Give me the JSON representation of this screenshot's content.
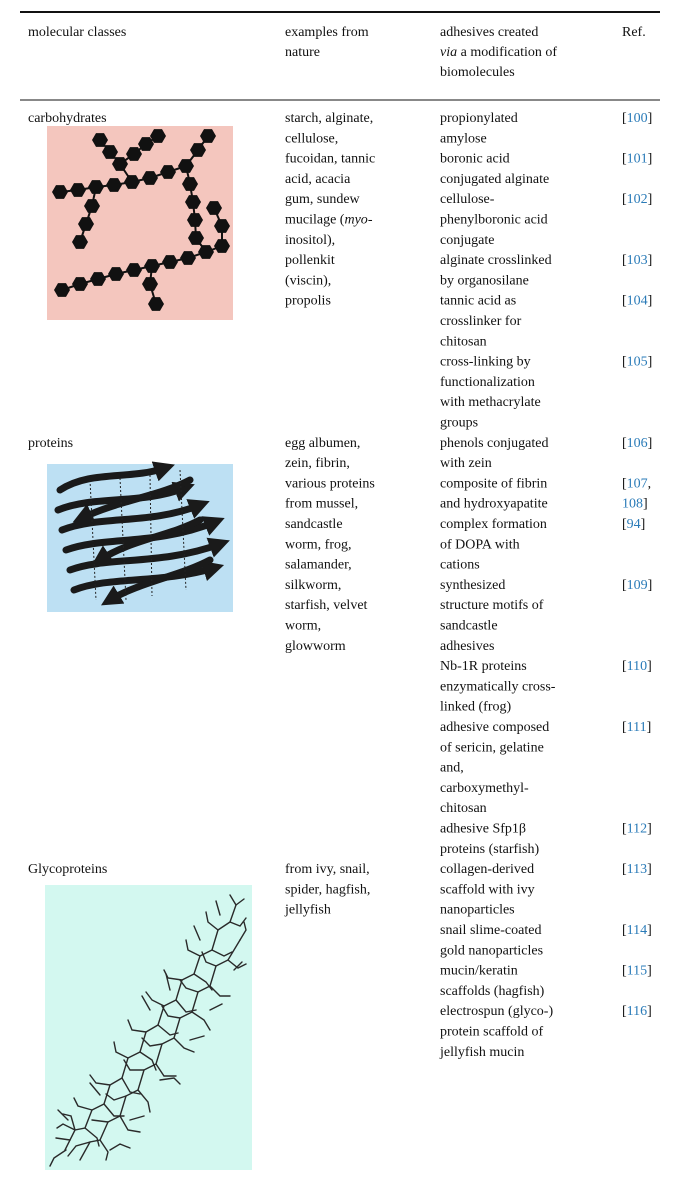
{
  "table": {
    "link_color": "#2a7bb8",
    "header": [
      {
        "lines": [
          "molecular classes"
        ]
      },
      {
        "lines": [
          "examples from",
          "nature"
        ]
      },
      {
        "lines": [
          "adhesives created",
          [
            {
              "text": "via",
              "style": "italic"
            },
            " a modification of"
          ],
          "biomolecules"
        ]
      },
      {
        "lines": [
          "Ref."
        ]
      }
    ],
    "rows": [
      {
        "class": "carbohydrates",
        "examples": [
          "starch, alginate,",
          "cellulose,",
          "fucoidan, tannic",
          "acid, acacia",
          "gum, sundew",
          [
            "mucilage (",
            {
              "text": "myo",
              "style": "italic"
            },
            "-"
          ],
          "inositol),",
          "pollenkit",
          "(viscin),",
          "propolis"
        ],
        "adhesives": [
          {
            "lines": [
              "propionylated",
              "amylose"
            ],
            "ref": [
              [
                "[",
                {
                  "text": "100",
                  "style": "link"
                },
                "]"
              ]
            ]
          },
          {
            "lines": [
              "boronic acid",
              "conjugated alginate"
            ],
            "ref": [
              [
                "[",
                {
                  "text": "101",
                  "style": "link"
                },
                "]"
              ]
            ]
          },
          {
            "lines": [
              "cellulose-",
              "phenylboronic acid",
              "conjugate"
            ],
            "ref": [
              [
                "[",
                {
                  "text": "102",
                  "style": "link"
                },
                "]"
              ]
            ]
          },
          {
            "lines": [
              "alginate crosslinked",
              "by organosilane"
            ],
            "ref": [
              [
                "[",
                {
                  "text": "103",
                  "style": "link"
                },
                "]"
              ]
            ]
          },
          {
            "lines": [
              "tannic acid as",
              "crosslinker for",
              "chitosan"
            ],
            "ref": [
              [
                "[",
                {
                  "text": "104",
                  "style": "link"
                },
                "]"
              ]
            ]
          },
          {
            "lines": [
              "cross-linking by",
              "functionalization",
              "with methacrylate",
              "groups"
            ],
            "ref": [
              [
                "[",
                {
                  "text": "105",
                  "style": "link"
                },
                "]"
              ]
            ]
          }
        ]
      },
      {
        "class": "proteins",
        "examples": [
          "egg albumen,",
          "zein, fibrin,",
          "various proteins",
          "from mussel,",
          "sandcastle",
          "worm, frog,",
          "salamander,",
          "silkworm,",
          "starfish, velvet",
          "worm,",
          "glowworm"
        ],
        "adhesives": [
          {
            "lines": [
              "phenols conjugated",
              "with zein"
            ],
            "ref": [
              [
                "[",
                {
                  "text": "106",
                  "style": "link"
                },
                "]"
              ]
            ]
          },
          {
            "lines": [
              "composite of fibrin",
              "and hydroxyapatite"
            ],
            "ref": [
              [
                "[",
                {
                  "text": "107",
                  "style": "link"
                },
                ","
              ],
              [
                {
                  "text": "108",
                  "style": "link"
                },
                "]"
              ]
            ]
          },
          {
            "lines": [
              "complex formation",
              "of DOPA with",
              "cations"
            ],
            "ref": [
              [
                "[",
                {
                  "text": "94",
                  "style": "link"
                },
                "]"
              ]
            ]
          },
          {
            "lines": [
              "synthesized",
              "structure motifs of",
              "sandcastle",
              "adhesives"
            ],
            "ref": [
              [
                "[",
                {
                  "text": "109",
                  "style": "link"
                },
                "]"
              ]
            ]
          },
          {
            "lines": [
              "Nb-1R proteins",
              "enzymatically cross-",
              "linked (frog)"
            ],
            "ref": [
              [
                "[",
                {
                  "text": "110",
                  "style": "link"
                },
                "]"
              ]
            ]
          },
          {
            "lines": [
              "adhesive composed",
              "of sericin, gelatine",
              "and,",
              "carboxymethyl-",
              "chitosan"
            ],
            "ref": [
              [
                "[",
                {
                  "text": "111",
                  "style": "link"
                },
                "]"
              ]
            ]
          },
          {
            "lines": [
              "adhesive Sfp1β",
              "proteins (starfish)"
            ],
            "ref": [
              [
                "[",
                {
                  "text": "112",
                  "style": "link"
                },
                "]"
              ]
            ]
          }
        ]
      },
      {
        "class": "Glycoproteins",
        "examples": [
          "from ivy, snail,",
          "spider, hagfish,",
          "jellyfish"
        ],
        "adhesives": [
          {
            "lines": [
              "collagen-derived",
              "scaffold with ivy",
              "nanoparticles"
            ],
            "ref": [
              [
                "[",
                {
                  "text": "113",
                  "style": "link"
                },
                "]"
              ]
            ]
          },
          {
            "lines": [
              "snail slime-coated",
              "gold nanoparticles"
            ],
            "ref": [
              [
                "[",
                {
                  "text": "114",
                  "style": "link"
                },
                "]"
              ]
            ]
          },
          {
            "lines": [
              "mucin/keratin",
              "scaffolds (hagfish)"
            ],
            "ref": [
              [
                "[",
                {
                  "text": "115",
                  "style": "link"
                },
                "]"
              ]
            ]
          },
          {
            "lines": [
              "electrospun (glyco-)",
              "protein scaffold of",
              "jellyfish mucin"
            ],
            "ref": [
              [
                "[",
                {
                  "text": "116",
                  "style": "link"
                },
                "]"
              ]
            ]
          }
        ]
      }
    ]
  }
}
